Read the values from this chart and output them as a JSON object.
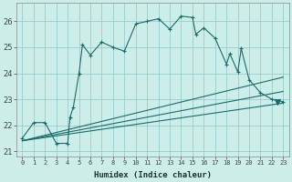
{
  "xlabel": "Humidex (Indice chaleur)",
  "bg_color": "#cceee8",
  "grid_color": "#99cccc",
  "line_color": "#1a6b6b",
  "xlim": [
    -0.5,
    23.5
  ],
  "ylim": [
    20.8,
    26.7
  ],
  "yticks": [
    21,
    22,
    23,
    24,
    25,
    26
  ],
  "xticks": [
    0,
    1,
    2,
    3,
    4,
    5,
    6,
    7,
    8,
    9,
    10,
    11,
    12,
    13,
    14,
    15,
    16,
    17,
    18,
    19,
    20,
    21,
    22,
    23
  ],
  "main_line_x": [
    0,
    1,
    2,
    3,
    4,
    4.2,
    4.5,
    5,
    5.3,
    6,
    7,
    8,
    9,
    10,
    11,
    12,
    13,
    14,
    15,
    15.3,
    16,
    17,
    18,
    18.3,
    19,
    19.3,
    20,
    21,
    22,
    23
  ],
  "main_line_y": [
    21.5,
    22.1,
    22.1,
    21.3,
    21.3,
    22.3,
    22.7,
    24.0,
    25.1,
    24.7,
    25.2,
    25.0,
    24.85,
    25.9,
    26.0,
    26.1,
    25.7,
    26.2,
    26.15,
    25.5,
    25.75,
    25.35,
    24.35,
    24.75,
    24.05,
    24.95,
    23.75,
    23.25,
    23.0,
    22.9
  ],
  "line2_x": [
    0,
    23
  ],
  "line2_y": [
    21.4,
    22.85
  ],
  "line3_x": [
    0,
    23
  ],
  "line3_y": [
    21.4,
    23.3
  ],
  "line4_x": [
    0,
    23
  ],
  "line4_y": [
    21.4,
    23.85
  ],
  "triangle_x": [
    22.5
  ],
  "triangle_y": [
    22.9
  ]
}
